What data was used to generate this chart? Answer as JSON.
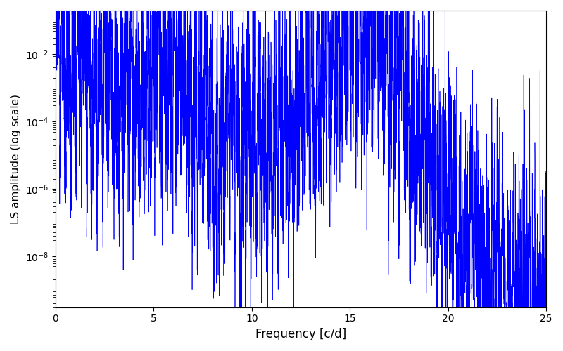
{
  "title": "",
  "xlabel": "Frequency [c/d]",
  "ylabel": "LS amplitude (log scale)",
  "xlim": [
    0,
    25
  ],
  "ylim": [
    3e-10,
    0.2
  ],
  "line_color": "#0000ff",
  "line_width": 0.5,
  "figsize": [
    8.0,
    5.0
  ],
  "dpi": 100,
  "background_color": "#ffffff",
  "yticks": [
    1e-08,
    1e-06,
    0.0001,
    0.01
  ],
  "xticks": [
    0,
    5,
    10,
    15,
    20,
    25
  ],
  "seed": 42,
  "n_points": 6000,
  "freq_max": 25.0
}
